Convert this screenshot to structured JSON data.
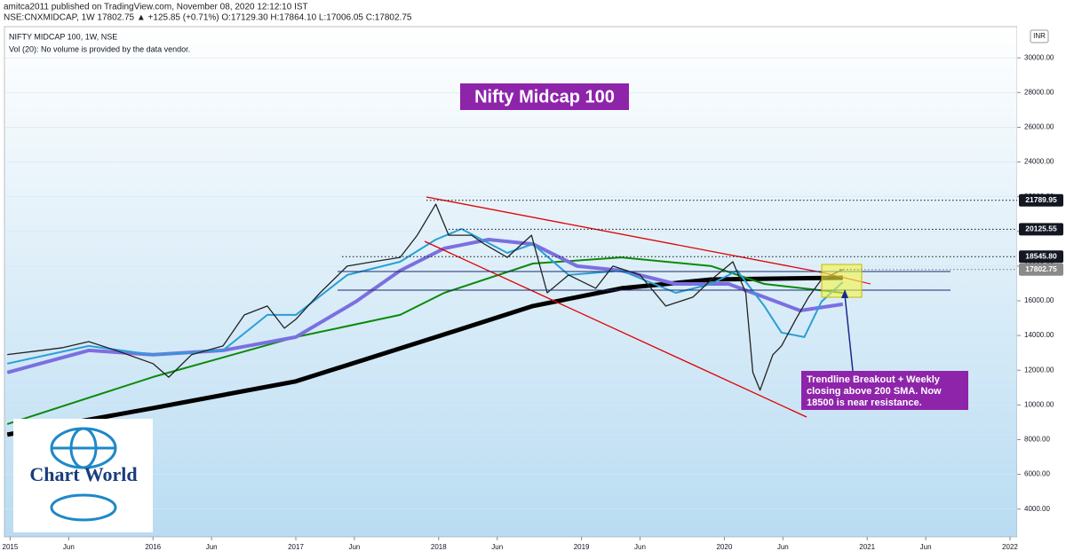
{
  "header": {
    "publisher": "amitca2011 published on TradingView.com, November 08, 2020 12:12:10 IST",
    "quote": "NSE:CNXMIDCAP, 1W  17802.75 ▲ +125.85 (+0.71%) O:17129.30 H:17864.10 L:17006.05 C:17802.75"
  },
  "chart_data": {
    "type": "line",
    "legend_lines": [
      "NIFTY MIDCAP 100, 1W, NSE",
      "Vol (20): No volume is provided by the data vendor."
    ],
    "title": "Nifty Midcap 100",
    "currency": "INR",
    "annotation": [
      "Trendline Breakout + Weekly",
      "closing above 200 SMA. Now",
      "18500 is near resistance."
    ],
    "logo": "Chart World",
    "xlim": [
      2014.96,
      2022.05
    ],
    "ylim": [
      2400,
      31800
    ],
    "xticks": [
      2015,
      {
        "value": 2015.41,
        "label": "Jun"
      },
      2016,
      {
        "value": 2016.41,
        "label": "Jun"
      },
      2017,
      {
        "value": 2017.41,
        "label": "Jun"
      },
      2018,
      {
        "value": 2018.41,
        "label": "Jun"
      },
      2019,
      {
        "value": 2019.41,
        "label": "Jun"
      },
      2020,
      {
        "value": 2020.41,
        "label": "Jun"
      },
      2021,
      {
        "value": 2021.41,
        "label": "Jun"
      },
      2022
    ],
    "yticks": [
      {
        "value": 4000,
        "label": "4000.00"
      },
      {
        "value": 6000,
        "label": "6000.00"
      },
      {
        "value": 8000,
        "label": "8000.00"
      },
      {
        "value": 10000,
        "label": "10000.00"
      },
      {
        "value": 12000,
        "label": "12000.00"
      },
      {
        "value": 14000,
        "label": "14000.00"
      },
      {
        "value": 16000,
        "label": "16000.00"
      },
      {
        "value": 18000,
        "label": "18000.00"
      },
      {
        "value": 20000,
        "label": "20000.00"
      },
      {
        "value": 22000,
        "label": "22000.00"
      },
      {
        "value": 24000,
        "label": "24000.00"
      },
      {
        "value": 26000,
        "label": "26000.00"
      },
      {
        "value": 28000,
        "label": "28000.00"
      },
      {
        "value": 30000,
        "label": "30000.00"
      }
    ],
    "levels": [
      21789.95,
      20125.55,
      {
        "value": 18545.8,
        "label": "18545.80"
      },
      17802.75
    ],
    "series": [
      {
        "color": "#000000",
        "width": 5,
        "x": [
          2014.98,
          2016.0,
          2017.0,
          2017.98,
          2018.66,
          2019.28,
          2019.91,
          2020.83
        ],
        "values": [
          8290,
          9820,
          11360,
          13910,
          15700,
          16720,
          17230,
          17330
        ]
      },
      {
        "color": "#0a8a0a",
        "width": 2,
        "x": [
          2014.98,
          2016.0,
          2017.0,
          2017.73,
          2018.04,
          2018.66,
          2019.28,
          2019.91,
          2020.28,
          2020.83
        ],
        "values": [
          8900,
          11610,
          13910,
          15190,
          16460,
          18150,
          18500,
          18000,
          16970,
          16460
        ]
      },
      {
        "color": "#7b6fe0",
        "width": 4,
        "x": [
          2014.98,
          2015.55,
          2016.0,
          2016.49,
          2017.0,
          2017.42,
          2017.73,
          2018.04,
          2018.35,
          2018.66,
          2018.97,
          2019.28,
          2019.66,
          2020.03,
          2020.28,
          2020.53,
          2020.83
        ],
        "values": [
          11870,
          13140,
          12890,
          13140,
          13910,
          15950,
          17740,
          19020,
          19530,
          19270,
          18000,
          17740,
          16970,
          16970,
          16210,
          15440,
          15800
        ]
      },
      {
        "color": "#2a9fd6",
        "width": 2,
        "x": [
          2014.98,
          2015.55,
          2016.0,
          2016.49,
          2016.8,
          2017.0,
          2017.36,
          2017.73,
          2017.98,
          2018.16,
          2018.48,
          2018.66,
          2018.91,
          2019.28,
          2019.66,
          2019.91,
          2020.09,
          2020.28,
          2020.4,
          2020.56,
          2020.68,
          2020.83
        ],
        "values": [
          12380,
          13400,
          12890,
          13140,
          15190,
          15190,
          17490,
          18250,
          19530,
          20140,
          18760,
          19270,
          17490,
          17740,
          16460,
          16970,
          17740,
          15700,
          14170,
          13910,
          15950,
          17080
        ]
      },
      {
        "color": "#222222",
        "width": 1.3,
        "x": [
          2014.98,
          2015.18,
          2015.37,
          2015.55,
          2015.74,
          2016.0,
          2016.11,
          2016.27,
          2016.49,
          2016.64,
          2016.8,
          2016.92,
          2017.0,
          2017.17,
          2017.36,
          2017.54,
          2017.73,
          2017.85,
          2017.98,
          2018.07,
          2018.23,
          2018.32,
          2018.48,
          2018.65,
          2018.76,
          2018.91,
          2019.1,
          2019.22,
          2019.41,
          2019.59,
          2019.78,
          2019.91,
          2020.06,
          2020.15,
          2020.2,
          2020.25,
          2020.34,
          2020.4,
          2020.5,
          2020.59,
          2020.68,
          2020.83
        ],
        "values": [
          12900,
          13100,
          13300,
          13650,
          13140,
          12380,
          11600,
          12890,
          13400,
          15190,
          15700,
          14420,
          14930,
          16460,
          18000,
          18250,
          18500,
          19780,
          21570,
          19780,
          19780,
          19270,
          18500,
          19780,
          16460,
          17490,
          16720,
          18000,
          17490,
          15700,
          16210,
          17230,
          18250,
          16460,
          11870,
          10850,
          12890,
          13400,
          14930,
          16210,
          17230,
          17802.75
        ]
      }
    ]
  }
}
